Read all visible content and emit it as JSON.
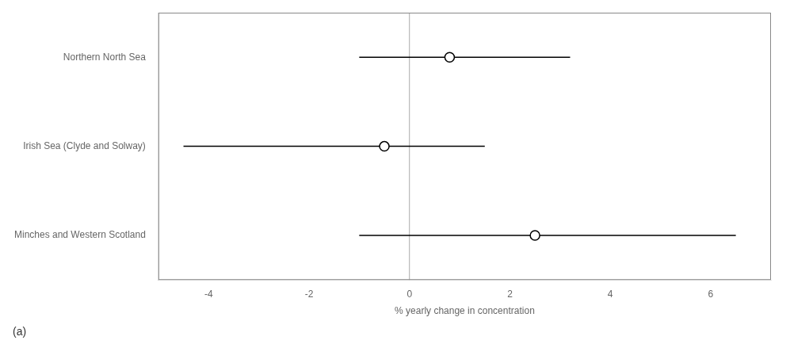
{
  "chart_data": {
    "type": "forest",
    "categories": [
      "Northern North Sea",
      "Irish Sea (Clyde and Solway)",
      "Minches and Western Scotland"
    ],
    "values": [
      0.8,
      -0.5,
      2.5
    ],
    "ci_low": [
      -1.0,
      -4.5,
      -1.0
    ],
    "ci_high": [
      3.2,
      1.5,
      6.5
    ],
    "xlabel": "% yearly change in concentration",
    "xlim": [
      -5.0,
      7.2
    ],
    "xticks": [
      -4,
      -2,
      0,
      2,
      4,
      6
    ],
    "reference_line": {
      "x": 0,
      "color": "#aaaaaa"
    },
    "annotation": "(a)",
    "color": "#000000",
    "marker": "hollow",
    "grid": false
  }
}
